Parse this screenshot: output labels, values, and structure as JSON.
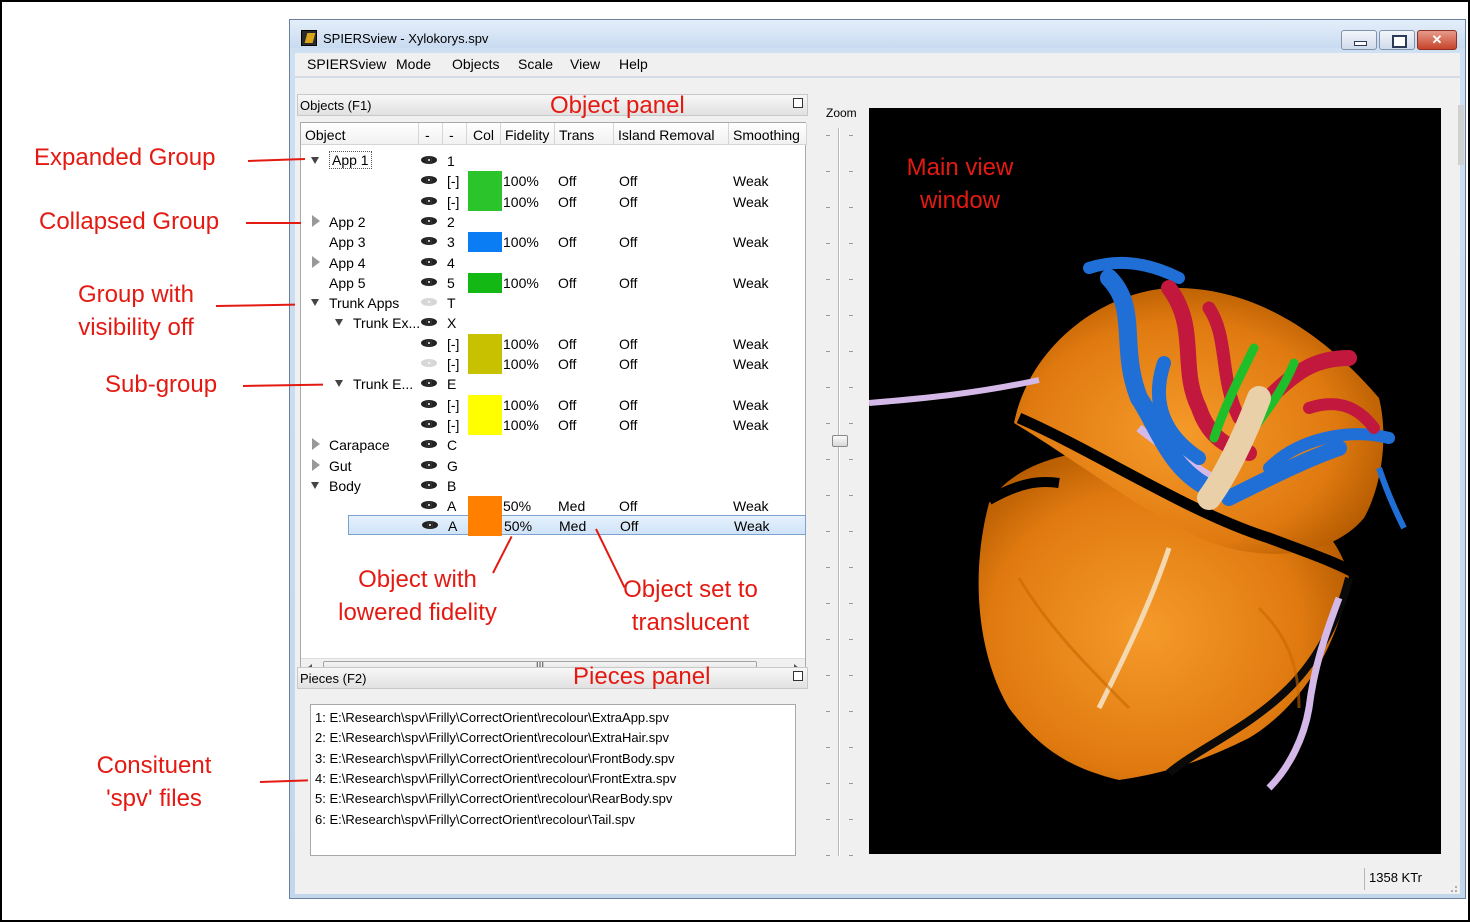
{
  "window": {
    "title": "SPIERSview - Xylokorys.spv"
  },
  "menu": [
    "SPIERSview",
    "Mode",
    "Objects",
    "Scale",
    "View",
    "Help"
  ],
  "objects_panel": {
    "header": "Objects (F1)",
    "columns": [
      "Object",
      "-",
      "-",
      "Col",
      "Fidelity",
      "Trans",
      "Island Removal",
      "Smoothing"
    ],
    "rows": [
      {
        "name": "App 1",
        "key": "1",
        "expand": "open",
        "indent": 0,
        "eye": "on"
      },
      {
        "name": "",
        "key": "[-]",
        "fidelity": "100%",
        "trans": "Off",
        "island": "Off",
        "smoothing": "Weak",
        "eye": "on"
      },
      {
        "name": "",
        "key": "[-]",
        "fidelity": "100%",
        "trans": "Off",
        "island": "Off",
        "smoothing": "Weak",
        "eye": "on"
      },
      {
        "name": "App 2",
        "key": "2",
        "expand": "closed",
        "indent": 0,
        "eye": "on"
      },
      {
        "name": "App 3",
        "key": "3",
        "fidelity": "100%",
        "trans": "Off",
        "island": "Off",
        "smoothing": "Weak",
        "eye": "on"
      },
      {
        "name": "App 4",
        "key": "4",
        "expand": "closed",
        "indent": 0,
        "eye": "on"
      },
      {
        "name": "App 5",
        "key": "5",
        "fidelity": "100%",
        "trans": "Off",
        "island": "Off",
        "smoothing": "Weak",
        "eye": "on"
      },
      {
        "name": "Trunk Apps",
        "key": "T",
        "expand": "open",
        "indent": 0,
        "eye": "off"
      },
      {
        "name": "Trunk Ex...",
        "key": "X",
        "expand": "open",
        "indent": 1,
        "eye": "on"
      },
      {
        "name": "",
        "key": "[-]",
        "fidelity": "100%",
        "trans": "Off",
        "island": "Off",
        "smoothing": "Weak",
        "eye": "on"
      },
      {
        "name": "",
        "key": "[-]",
        "fidelity": "100%",
        "trans": "Off",
        "island": "Off",
        "smoothing": "Weak",
        "eye": "off"
      },
      {
        "name": "Trunk E...",
        "key": "E",
        "expand": "open",
        "indent": 1,
        "eye": "on"
      },
      {
        "name": "",
        "key": "[-]",
        "fidelity": "100%",
        "trans": "Off",
        "island": "Off",
        "smoothing": "Weak",
        "eye": "on"
      },
      {
        "name": "",
        "key": "[-]",
        "fidelity": "100%",
        "trans": "Off",
        "island": "Off",
        "smoothing": "Weak",
        "eye": "on"
      },
      {
        "name": "Carapace",
        "key": "C",
        "expand": "closed",
        "indent": 0,
        "eye": "on"
      },
      {
        "name": "Gut",
        "key": "G",
        "expand": "closed",
        "indent": 0,
        "eye": "on"
      },
      {
        "name": "Body",
        "key": "B",
        "expand": "open",
        "indent": 0,
        "eye": "on"
      },
      {
        "name": "",
        "key": "A",
        "fidelity": "50%",
        "trans": "Med",
        "island": "Off",
        "smoothing": "Weak",
        "eye": "on"
      },
      {
        "name": "",
        "key": "A",
        "fidelity": "50%",
        "trans": "Med",
        "island": "Off",
        "smoothing": "Weak",
        "eye": "on",
        "selected": true
      }
    ],
    "swatch_colors": [
      "#2bc42b",
      "#0a7df5",
      "#14b814",
      "#c7c100",
      "#ffff00",
      "#ff8000"
    ],
    "scroll_mark": "III"
  },
  "pieces_panel": {
    "header": "Pieces (F2)",
    "files": [
      "1: E:\\Research\\spv\\Frilly\\CorrectOrient\\recolour\\ExtraApp.spv",
      "2: E:\\Research\\spv\\Frilly\\CorrectOrient\\recolour\\ExtraHair.spv",
      "3: E:\\Research\\spv\\Frilly\\CorrectOrient\\recolour\\FrontBody.spv",
      "4: E:\\Research\\spv\\Frilly\\CorrectOrient\\recolour\\FrontExtra.spv",
      "5: E:\\Research\\spv\\Frilly\\CorrectOrient\\recolour\\RearBody.spv",
      "6: E:\\Research\\spv\\Frilly\\CorrectOrient\\recolour\\Tail.spv"
    ]
  },
  "zoom": {
    "label": "Zoom"
  },
  "status": {
    "triangles": "1358 KTr"
  },
  "annotations": {
    "object_panel": "Object panel",
    "pieces_panel": "Pieces panel",
    "main_view": "Main view window",
    "expanded_group": "Expanded Group",
    "collapsed_group": "Collapsed Group",
    "group_visibility_off": "Group with visibility off",
    "sub_group": "Sub-group",
    "lowered_fidelity": "Object with lowered fidelity",
    "translucent": "Object set to translucent",
    "constituent_files": "Consituent 'spv' files"
  },
  "colors": {
    "annotation": "#e41a12",
    "selection": "#cfe3f8"
  }
}
